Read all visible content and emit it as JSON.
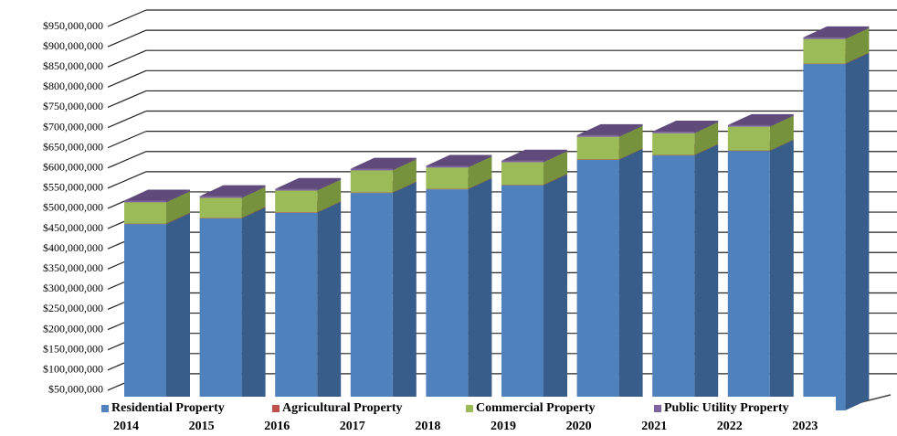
{
  "chart_data": {
    "type": "bar3d_stacked",
    "categories": [
      "2014",
      "2015",
      "2016",
      "2017",
      "2018",
      "2019",
      "2020",
      "2021",
      "2022",
      "2023"
    ],
    "series": [
      {
        "name": "Residential Property",
        "color": "#4f81bd",
        "side": "#385d8a",
        "values": [
          461000000,
          475000000,
          489000000,
          538000000,
          547000000,
          557000000,
          620000000,
          631000000,
          642000000,
          857000000
        ]
      },
      {
        "name": "Agricultural Property",
        "color": "#c0504d",
        "side": "#8c3836",
        "values": [
          1000000,
          1000000,
          1000000,
          1000000,
          1000000,
          1000000,
          1000000,
          1000000,
          1000000,
          1000000
        ]
      },
      {
        "name": "Commercial Property",
        "color": "#9bbb59",
        "side": "#76923c",
        "values": [
          53000000,
          50000000,
          54000000,
          55000000,
          53000000,
          56000000,
          56000000,
          54000000,
          59000000,
          61000000
        ]
      },
      {
        "name": "Public Utility Property",
        "color": "#8064a2",
        "side": "#5f4a7b",
        "values": [
          4000000,
          4000000,
          4000000,
          4000000,
          4000000,
          4000000,
          4000000,
          4000000,
          4000000,
          4000000
        ]
      }
    ],
    "ylim": [
      0,
      950000000
    ],
    "yticks": [
      {
        "value": 50000000,
        "label": "$50,000,000"
      },
      {
        "value": 100000000,
        "label": "$100,000,000"
      },
      {
        "value": 150000000,
        "label": "$150,000,000"
      },
      {
        "value": 200000000,
        "label": "$200,000,000"
      },
      {
        "value": 250000000,
        "label": "$250,000,000"
      },
      {
        "value": 300000000,
        "label": "$300,000,000"
      },
      {
        "value": 350000000,
        "label": "$350,000,000"
      },
      {
        "value": 400000000,
        "label": "$400,000,000"
      },
      {
        "value": 450000000,
        "label": "$450,000,000"
      },
      {
        "value": 500000000,
        "label": "$500,000,000"
      },
      {
        "value": 550000000,
        "label": "$550,000,000"
      },
      {
        "value": 600000000,
        "label": "$600,000,000"
      },
      {
        "value": 650000000,
        "label": "$650,000,000"
      },
      {
        "value": 700000000,
        "label": "$700,000,000"
      },
      {
        "value": 750000000,
        "label": "$750,000,000"
      },
      {
        "value": 800000000,
        "label": "$800,000,000"
      },
      {
        "value": 850000000,
        "label": "$850,000,000"
      },
      {
        "value": 900000000,
        "label": "$900,000,000"
      },
      {
        "value": 950000000,
        "label": "$950,000,000"
      }
    ],
    "grid": true
  }
}
